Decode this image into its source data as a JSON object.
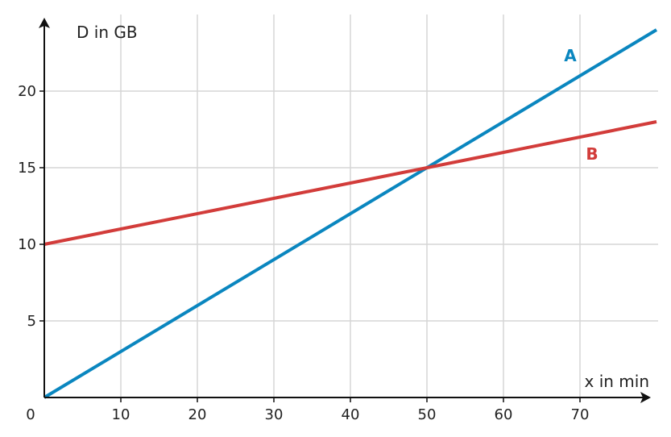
{
  "chart_data": {
    "type": "line",
    "xlabel": "x in min",
    "ylabel": "D in GB",
    "xlim": [
      0,
      80
    ],
    "ylim": [
      0,
      25
    ],
    "x_ticks": [
      10,
      20,
      30,
      40,
      50,
      60,
      70
    ],
    "y_ticks": [
      5,
      10,
      15,
      20
    ],
    "origin_label": "0",
    "grid": true,
    "series": [
      {
        "name": "A",
        "color": "#0a86bf",
        "x": [
          0,
          80
        ],
        "y": [
          0,
          24
        ]
      },
      {
        "name": "B",
        "color": "#d23c3a",
        "x": [
          0,
          80
        ],
        "y": [
          10,
          18
        ]
      }
    ]
  }
}
